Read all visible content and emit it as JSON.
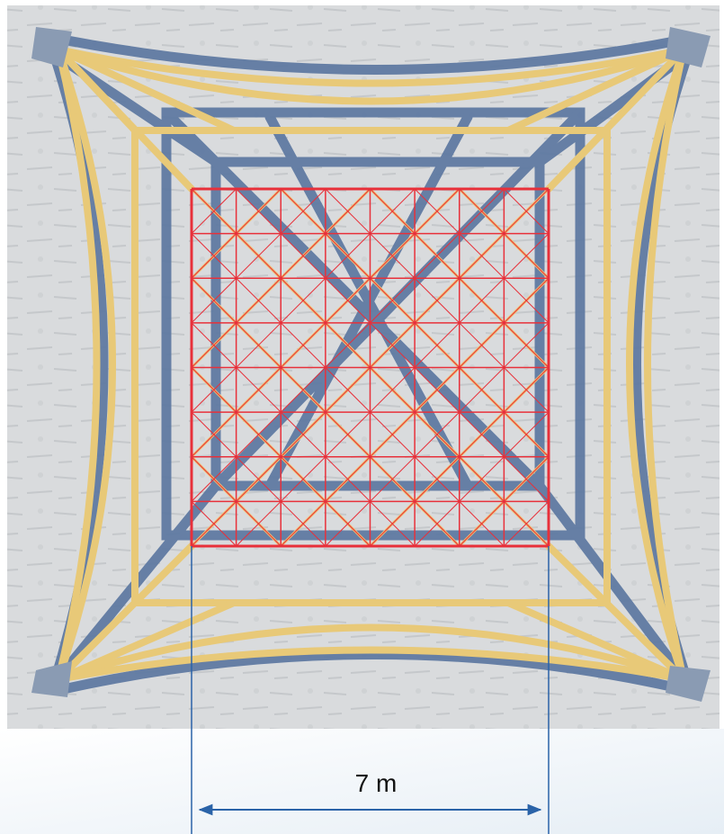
{
  "dimension": {
    "label": "7 m"
  }
}
